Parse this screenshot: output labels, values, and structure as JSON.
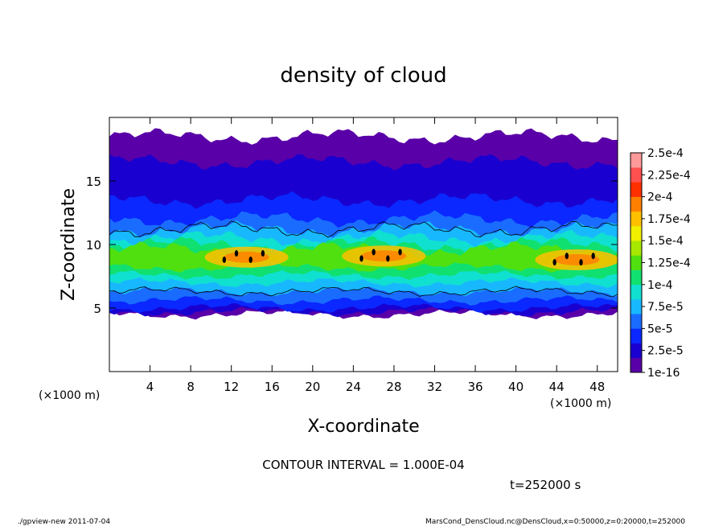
{
  "footer": {
    "left": "./gpview-new   2011-07-04",
    "right": "MarsCond_DensCloud.nc@DensCloud,x=0:50000,z=0:20000,t=252000"
  },
  "chart_data": {
    "type": "heatmap",
    "title": "density of cloud",
    "xlabel": "X-coordinate",
    "ylabel": "Z-coordinate",
    "x_units": "(×1000 m)",
    "y_units": "(×1000 m)",
    "xlim": [
      0,
      50
    ],
    "ylim": [
      0,
      20
    ],
    "x_ticks": [
      4,
      8,
      12,
      16,
      20,
      24,
      28,
      32,
      36,
      40,
      44,
      48
    ],
    "y_ticks": [
      5,
      10,
      15
    ],
    "contour_interval": "CONTOUR INTERVAL = 1.000E-04",
    "time_label": "t=252000 s",
    "colorbar": {
      "labels": [
        "1e-16",
        "2.5e-5",
        "5e-5",
        "7.5e-5",
        "1e-4",
        "1.25e-4",
        "1.5e-4",
        "1.75e-4",
        "2e-4",
        "2.25e-4",
        "2.5e-4"
      ],
      "levels": [
        1e-16,
        2.5e-05,
        5e-05,
        7.5e-05,
        0.0001,
        0.000125,
        0.00015,
        0.000175,
        0.0002,
        0.000225,
        0.00025
      ],
      "colors": [
        "#5a00a8",
        "#1a00d0",
        "#0a28ff",
        "#1a6cff",
        "#18b8ff",
        "#10e0d0",
        "#10e070",
        "#50e010",
        "#a8e800",
        "#f0f000",
        "#ffc000",
        "#ff8000",
        "#ff3000",
        "#ff5050",
        "#ff9a9a"
      ]
    },
    "bands": [
      {
        "level": "1e-16",
        "z_bottom": 4.5,
        "z_top": 18.5
      },
      {
        "level": "2.5e-5",
        "z_bottom": 4.7,
        "z_top": 16.5
      },
      {
        "level": "5e-5",
        "z_bottom": 5.0,
        "z_top": 13.5
      },
      {
        "level": "7.5e-5",
        "z_bottom": 5.6,
        "z_top": 12.0
      },
      {
        "level": "1e-4",
        "z_bottom": 6.3,
        "z_top": 11.2
      },
      {
        "level": "1.25e-4",
        "z_bottom": 7.0,
        "z_top": 10.5
      },
      {
        "level": "1.5e-4",
        "z_bottom": 7.6,
        "z_top": 10.0
      },
      {
        "level": "1.75e-4",
        "z_bottom": 8.2,
        "z_top": 9.6
      }
    ],
    "peaks": [
      {
        "x": 13.5,
        "z": 9.0
      },
      {
        "x": 27.0,
        "z": 9.1
      },
      {
        "x": 46.0,
        "z": 8.8
      }
    ]
  }
}
